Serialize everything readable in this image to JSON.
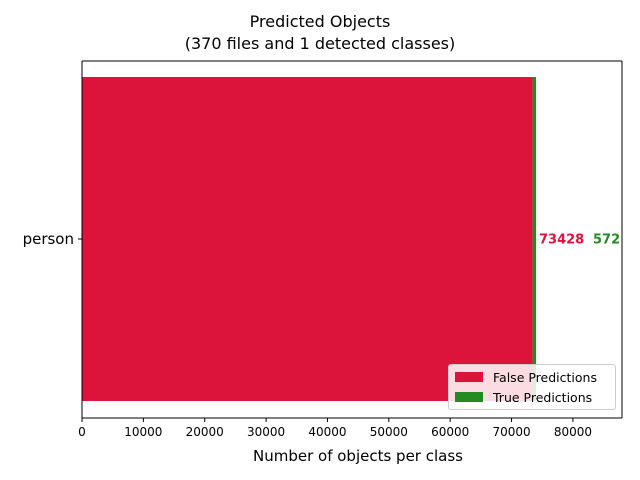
{
  "colors": {
    "false": "#dc143c",
    "true": "#228b22"
  },
  "chart_data": {
    "type": "bar",
    "orientation": "horizontal",
    "stacked": true,
    "title": "Predicted Objects",
    "subtitle": "(370 files and 1 detected classes)",
    "xlabel": "Number of objects per class",
    "ylabel": "",
    "categories": [
      "person"
    ],
    "series": [
      {
        "name": "False Predictions",
        "values": [
          73428
        ],
        "color": "#dc143c"
      },
      {
        "name": "True Predictions",
        "values": [
          572
        ],
        "color": "#228b22"
      }
    ],
    "xlim": [
      0,
      88000
    ],
    "xticks": [
      0,
      10000,
      20000,
      30000,
      40000,
      50000,
      60000,
      70000,
      80000
    ],
    "grid": false,
    "legend_position": "lower right"
  }
}
